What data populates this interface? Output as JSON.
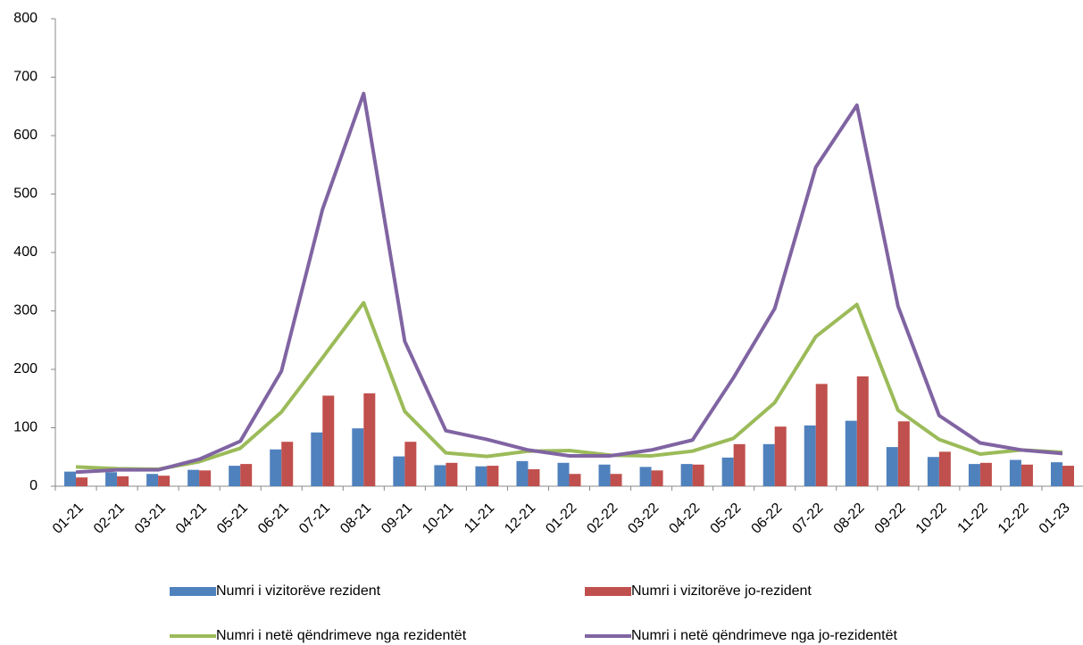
{
  "chart_data": {
    "type": "bar-line",
    "categories": [
      "01-21",
      "02-21",
      "03-21",
      "04-21",
      "05-21",
      "06-21",
      "07-21",
      "08-21",
      "09-21",
      "10-21",
      "11-21",
      "12-21",
      "01-22",
      "02-22",
      "03-22",
      "04-22",
      "05-22",
      "06-22",
      "07-22",
      "08-22",
      "09-22",
      "10-22",
      "11-22",
      "12-22",
      "01-23"
    ],
    "series": [
      {
        "name": "Numri i vizitorëve rezident",
        "type": "bar",
        "color": "#4f81bd",
        "values": [
          25,
          24,
          21,
          28,
          35,
          63,
          92,
          99,
          51,
          36,
          34,
          43,
          40,
          37,
          33,
          38,
          49,
          72,
          104,
          112,
          67,
          50,
          38,
          45,
          41
        ]
      },
      {
        "name": "Numri i vizitorëve jo-rezident",
        "type": "bar",
        "color": "#c0504d",
        "values": [
          15,
          17,
          18,
          27,
          38,
          76,
          155,
          159,
          76,
          40,
          35,
          29,
          21,
          21,
          27,
          37,
          72,
          102,
          175,
          188,
          111,
          59,
          40,
          37,
          35
        ]
      },
      {
        "name": "Numri i netë qëndrimeve nga rezidentët",
        "type": "line",
        "color": "#9bbb59",
        "values": [
          33,
          30,
          29,
          42,
          65,
          127,
          220,
          314,
          128,
          57,
          51,
          60,
          61,
          53,
          52,
          60,
          82,
          143,
          256,
          311,
          130,
          80,
          55,
          62,
          58
        ]
      },
      {
        "name": "Numri i netë qëndrimeve nga jo-rezidentët",
        "type": "line",
        "color": "#8064a2",
        "values": [
          24,
          28,
          28,
          46,
          77,
          197,
          474,
          672,
          248,
          95,
          80,
          62,
          52,
          52,
          62,
          79,
          186,
          304,
          546,
          652,
          308,
          121,
          74,
          62,
          56
        ]
      }
    ],
    "ylim": [
      0,
      800
    ],
    "yticks": [
      0,
      100,
      200,
      300,
      400,
      500,
      600,
      700,
      800
    ]
  }
}
